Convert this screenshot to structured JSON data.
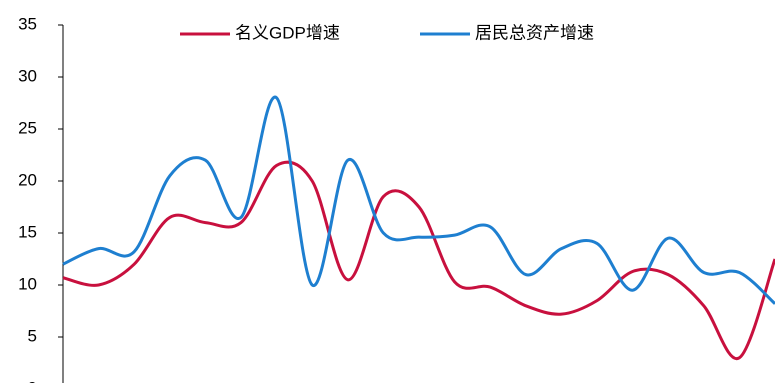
{
  "chart_data": {
    "type": "line",
    "categories": [
      null,
      null,
      null,
      null,
      null,
      null,
      null,
      null,
      null,
      null,
      null,
      null,
      null,
      null,
      null,
      null,
      null,
      null,
      null,
      null,
      null
    ],
    "series": [
      {
        "name": "名义GDP增速",
        "color": "#c8103e",
        "values": [
          10.7,
          10,
          12,
          16.5,
          16,
          16,
          21.5,
          20,
          10.5,
          18.5,
          17.5,
          10.3,
          9.8,
          8,
          7.2,
          8.5,
          11.3,
          11,
          8,
          3,
          12.5
        ]
      },
      {
        "name": "居民总资产增速",
        "color": "#1e7fd0",
        "values": [
          12,
          13.5,
          13.2,
          20.5,
          22,
          16.5,
          28,
          10,
          22,
          15,
          14.6,
          14.8,
          15.6,
          11,
          13.5,
          14,
          9.5,
          14.5,
          11.2,
          11.2,
          8.2
        ]
      }
    ],
    "ylim": [
      0,
      35
    ],
    "yticks": [
      0,
      5,
      10,
      15,
      20,
      25,
      30,
      35
    ]
  }
}
